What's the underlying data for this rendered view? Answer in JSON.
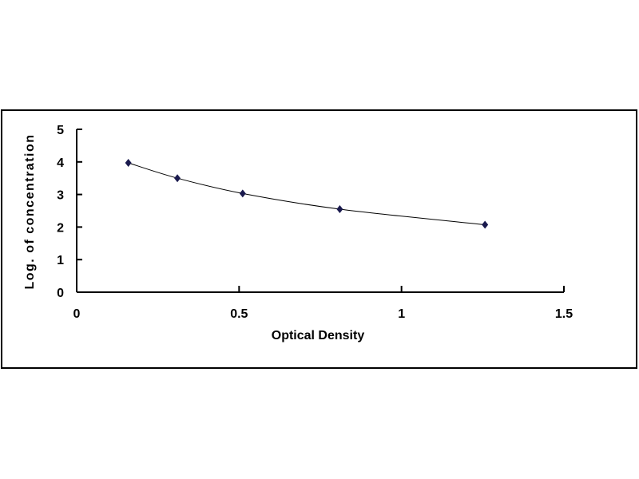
{
  "chart_data": {
    "type": "line",
    "title": "",
    "xlabel": "Optical Density",
    "ylabel": "Log. of concentration",
    "xlim": [
      0,
      1.5
    ],
    "ylim": [
      0,
      5
    ],
    "xticks": [
      "0",
      "0.5",
      "1",
      "1.5"
    ],
    "yticks": [
      "0",
      "1",
      "2",
      "3",
      "4",
      "5"
    ],
    "grid": false,
    "legend": "none",
    "series": [
      {
        "x": [
          0.159,
          0.31,
          0.511,
          0.81,
          1.257
        ],
        "y": [
          3.97,
          3.5,
          3.03,
          2.55,
          2.07
        ],
        "marker": "diamond",
        "line": "smooth",
        "color": "#1a1a4e"
      }
    ]
  }
}
